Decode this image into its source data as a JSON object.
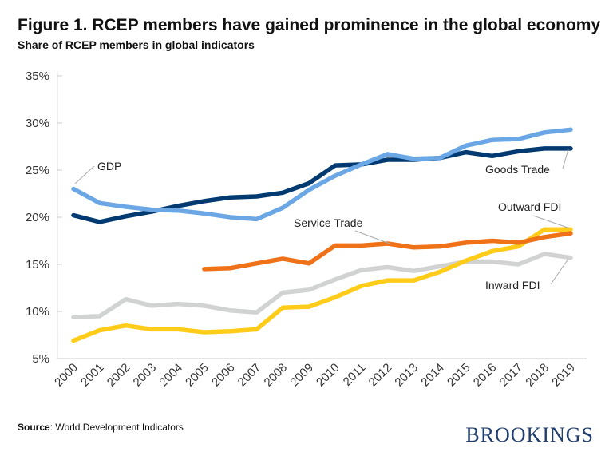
{
  "title": "Figure 1. RCEP members have gained prominence in the global economy",
  "subtitle": "Share of RCEP members in global indicators",
  "source_label": "Source",
  "source_text": ": World Development Indicators",
  "logo": "BROOKINGS",
  "chart_data": {
    "type": "line",
    "title": "Figure 1. RCEP members have gained prominence in the global economy",
    "subtitle": "Share of RCEP members in global indicators",
    "xlabel": "",
    "ylabel": "",
    "ylim": [
      5,
      35
    ],
    "yticks": [
      "5%",
      "10%",
      "15%",
      "20%",
      "25%",
      "30%",
      "35%"
    ],
    "ytick_values": [
      5,
      10,
      15,
      20,
      25,
      30,
      35
    ],
    "grid": false,
    "legend": "direct labels",
    "x": [
      2000,
      2001,
      2002,
      2003,
      2004,
      2005,
      2006,
      2007,
      2008,
      2009,
      2010,
      2011,
      2012,
      2013,
      2014,
      2015,
      2016,
      2017,
      2018,
      2019
    ],
    "series": [
      {
        "name": "Inward FDI",
        "color": "#d0d3d2",
        "values": [
          9.4,
          9.5,
          11.3,
          10.6,
          10.8,
          10.6,
          10.1,
          9.9,
          12.0,
          12.3,
          13.4,
          14.4,
          14.7,
          14.3,
          14.8,
          15.3,
          15.3,
          15.0,
          16.1,
          15.7
        ]
      },
      {
        "name": "Outward FDI",
        "color": "#ffcc1a",
        "values": [
          6.9,
          8.0,
          8.5,
          8.1,
          8.1,
          7.8,
          7.9,
          8.1,
          10.4,
          10.5,
          11.5,
          12.7,
          13.3,
          13.3,
          14.2,
          15.4,
          16.4,
          16.9,
          18.7,
          18.7
        ]
      },
      {
        "name": "Service Trade",
        "color": "#ef7118",
        "values": [
          null,
          null,
          null,
          null,
          null,
          14.5,
          14.6,
          15.1,
          15.6,
          15.1,
          17.0,
          17.0,
          17.2,
          16.8,
          16.9,
          17.3,
          17.5,
          17.3,
          17.9,
          18.3
        ]
      },
      {
        "name": "Goods Trade",
        "color": "#003a70",
        "values": [
          20.2,
          19.5,
          20.1,
          20.6,
          21.2,
          21.7,
          22.1,
          22.2,
          22.6,
          23.6,
          25.5,
          25.6,
          26.1,
          26.1,
          26.3,
          26.9,
          26.5,
          27.0,
          27.3,
          27.3
        ]
      },
      {
        "name": "GDP",
        "color": "#6aa7e4",
        "values": [
          23.0,
          21.5,
          21.1,
          20.8,
          20.7,
          20.4,
          20.0,
          19.8,
          21.0,
          22.9,
          24.4,
          25.6,
          26.7,
          26.2,
          26.3,
          27.6,
          28.2,
          28.3,
          29.0,
          29.3
        ]
      }
    ]
  }
}
